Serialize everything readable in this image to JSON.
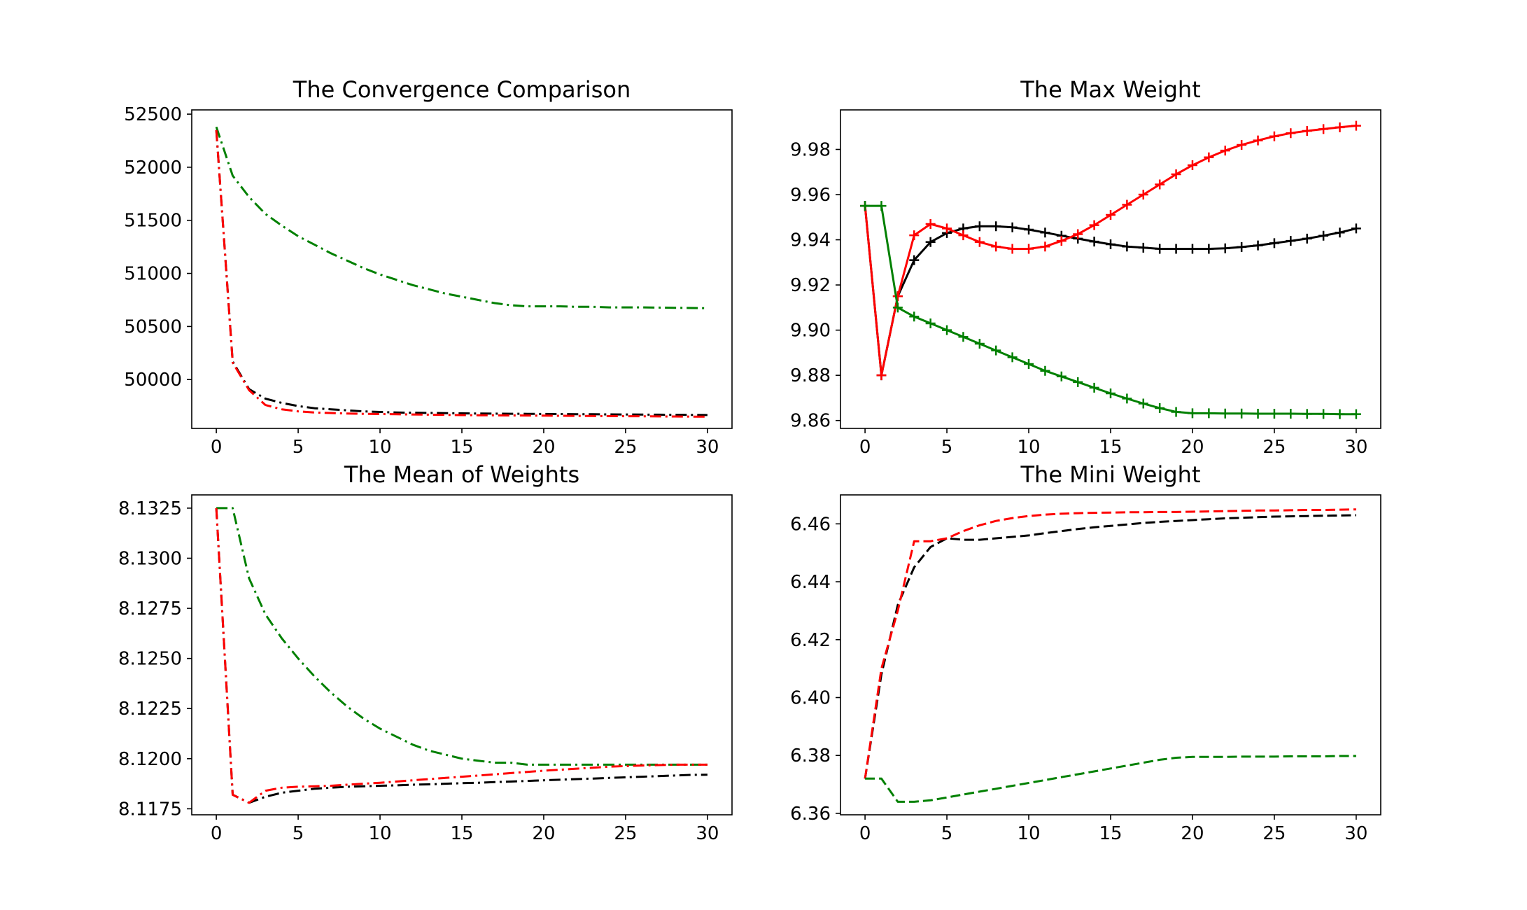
{
  "chart_data": [
    {
      "type": "line",
      "title": "The Convergence Comparison",
      "xlabel": "",
      "ylabel": "",
      "xlim": [
        -1.5,
        31.5
      ],
      "ylim": [
        49540,
        52540
      ],
      "xticks": [
        0,
        5,
        10,
        15,
        20,
        25,
        30
      ],
      "yticks": [
        50000,
        50500,
        51000,
        51500,
        52000,
        52500
      ],
      "x": [
        0,
        1,
        2,
        3,
        4,
        5,
        6,
        7,
        8,
        9,
        10,
        11,
        12,
        13,
        14,
        15,
        16,
        17,
        18,
        19,
        20,
        21,
        22,
        23,
        24,
        25,
        26,
        27,
        28,
        29,
        30
      ],
      "series": [
        {
          "color": "#008000",
          "dash": "dashdot",
          "marker": "none",
          "values": [
            52380,
            51920,
            51720,
            51560,
            51450,
            51350,
            51270,
            51190,
            51120,
            51050,
            50990,
            50940,
            50890,
            50850,
            50810,
            50780,
            50750,
            50720,
            50700,
            50690,
            50690,
            50690,
            50685,
            50685,
            50680,
            50680,
            50680,
            50678,
            50676,
            50674,
            50672
          ]
        },
        {
          "color": "#000000",
          "dash": "dashdot",
          "marker": "none",
          "values": [
            52350,
            50170,
            49910,
            49820,
            49780,
            49750,
            49730,
            49720,
            49710,
            49700,
            49695,
            49690,
            49688,
            49686,
            49684,
            49682,
            49680,
            49679,
            49678,
            49677,
            49676,
            49675,
            49674,
            49673,
            49672,
            49671,
            49670,
            49669,
            49668,
            49667,
            49666
          ]
        },
        {
          "color": "#ff0000",
          "dash": "dashdot",
          "marker": "none",
          "values": [
            52350,
            50160,
            49900,
            49760,
            49720,
            49700,
            49690,
            49685,
            49680,
            49677,
            49675,
            49673,
            49671,
            49669,
            49667,
            49665,
            49664,
            49663,
            49662,
            49661,
            49660,
            49659,
            49658,
            49657,
            49656,
            49655,
            49654,
            49653,
            49652,
            49651,
            49650
          ]
        }
      ]
    },
    {
      "type": "line",
      "title": "The Max Weight",
      "xlabel": "",
      "ylabel": "",
      "xlim": [
        -1.5,
        31.5
      ],
      "ylim": [
        9.8565,
        9.9975
      ],
      "xticks": [
        0,
        5,
        10,
        15,
        20,
        25,
        30
      ],
      "yticks": [
        9.86,
        9.88,
        9.9,
        9.92,
        9.94,
        9.96,
        9.98
      ],
      "x": [
        0,
        1,
        2,
        3,
        4,
        5,
        6,
        7,
        8,
        9,
        10,
        11,
        12,
        13,
        14,
        15,
        16,
        17,
        18,
        19,
        20,
        21,
        22,
        23,
        24,
        25,
        26,
        27,
        28,
        29,
        30
      ],
      "series": [
        {
          "color": "#000000",
          "dash": "solid",
          "marker": "plus",
          "values": [
            9.955,
            9.88,
            9.915,
            9.931,
            9.939,
            9.943,
            9.945,
            9.946,
            9.946,
            9.9455,
            9.9445,
            9.9432,
            9.9418,
            9.9405,
            9.9392,
            9.938,
            9.937,
            9.9365,
            9.936,
            9.936,
            9.936,
            9.936,
            9.9362,
            9.9368,
            9.9375,
            9.9385,
            9.9395,
            9.9405,
            9.9418,
            9.9432,
            9.945
          ]
        },
        {
          "color": "#ff0000",
          "dash": "solid",
          "marker": "plus",
          "values": [
            9.955,
            9.88,
            9.915,
            9.942,
            9.947,
            9.945,
            9.942,
            9.939,
            9.937,
            9.936,
            9.936,
            9.937,
            9.9395,
            9.9425,
            9.9465,
            9.951,
            9.9555,
            9.96,
            9.9645,
            9.969,
            9.973,
            9.9765,
            9.9795,
            9.982,
            9.984,
            9.9858,
            9.9872,
            9.9882,
            9.989,
            9.9898,
            9.9905
          ]
        },
        {
          "color": "#008000",
          "dash": "solid",
          "marker": "plus",
          "values": [
            9.955,
            9.955,
            9.91,
            9.906,
            9.903,
            9.9,
            9.897,
            9.894,
            9.891,
            9.888,
            9.885,
            9.882,
            9.8795,
            9.877,
            9.8745,
            9.872,
            9.8697,
            9.8675,
            9.8655,
            9.8638,
            9.8632,
            9.8632,
            9.8631,
            9.8631,
            9.863,
            9.863,
            9.863,
            9.8629,
            9.8629,
            9.8628,
            9.8628
          ]
        }
      ]
    },
    {
      "type": "line",
      "title": "The Mean of Weights",
      "xlabel": "",
      "ylabel": "",
      "xlim": [
        -1.5,
        31.5
      ],
      "ylim": [
        8.1172,
        8.13316
      ],
      "xticks": [
        0,
        5,
        10,
        15,
        20,
        25,
        30
      ],
      "yticks": [
        8.1175,
        8.12,
        8.1225,
        8.125,
        8.1275,
        8.13,
        8.1325
      ],
      "x": [
        0,
        1,
        2,
        3,
        4,
        5,
        6,
        7,
        8,
        9,
        10,
        11,
        12,
        13,
        14,
        15,
        16,
        17,
        18,
        19,
        20,
        21,
        22,
        23,
        24,
        25,
        26,
        27,
        28,
        29,
        30
      ],
      "series": [
        {
          "color": "#008000",
          "dash": "dashdot",
          "marker": "none",
          "values": [
            8.1325,
            8.1325,
            8.129,
            8.1272,
            8.126,
            8.125,
            8.1241,
            8.1233,
            8.1226,
            8.122,
            8.1215,
            8.1211,
            8.1207,
            8.1204,
            8.1202,
            8.12,
            8.1199,
            8.1198,
            8.1198,
            8.1197,
            8.1197,
            8.1197,
            8.1197,
            8.1197,
            8.1197,
            8.1197,
            8.1197,
            8.1197,
            8.1197,
            8.1197,
            8.1197
          ]
        },
        {
          "color": "#000000",
          "dash": "dashdot",
          "marker": "none",
          "values": [
            8.1325,
            8.1182,
            8.1178,
            8.1181,
            8.1183,
            8.1184,
            8.1185,
            8.11855,
            8.1186,
            8.11862,
            8.11865,
            8.11867,
            8.1187,
            8.11872,
            8.11875,
            8.11878,
            8.1188,
            8.11883,
            8.11886,
            8.11889,
            8.11892,
            8.11895,
            8.11898,
            8.11901,
            8.11904,
            8.11907,
            8.1191,
            8.11913,
            8.11916,
            8.11919,
            8.1192
          ]
        },
        {
          "color": "#ff0000",
          "dash": "dashdot",
          "marker": "none",
          "values": [
            8.1325,
            8.1182,
            8.1178,
            8.1184,
            8.11855,
            8.1186,
            8.11862,
            8.11865,
            8.1187,
            8.11875,
            8.1188,
            8.11886,
            8.11892,
            8.11898,
            8.11904,
            8.1191,
            8.11916,
            8.11922,
            8.11928,
            8.11934,
            8.1194,
            8.11945,
            8.1195,
            8.11955,
            8.1196,
            8.11963,
            8.11966,
            8.11968,
            8.1197,
            8.1197,
            8.1197
          ]
        }
      ]
    },
    {
      "type": "line",
      "title": "The Mini Weight",
      "xlabel": "",
      "ylabel": "",
      "xlim": [
        -1.5,
        31.5
      ],
      "ylim": [
        6.3595,
        6.47
      ],
      "xticks": [
        0,
        5,
        10,
        15,
        20,
        25,
        30
      ],
      "yticks": [
        6.36,
        6.38,
        6.4,
        6.42,
        6.44,
        6.46
      ],
      "x": [
        0,
        1,
        2,
        3,
        4,
        5,
        6,
        7,
        8,
        9,
        10,
        11,
        12,
        13,
        14,
        15,
        16,
        17,
        18,
        19,
        20,
        21,
        22,
        23,
        24,
        25,
        26,
        27,
        28,
        29,
        30
      ],
      "series": [
        {
          "color": "#000000",
          "dash": "dashed",
          "marker": "none",
          "values": [
            6.372,
            6.408,
            6.432,
            6.445,
            6.452,
            6.455,
            6.4545,
            6.4545,
            6.455,
            6.4555,
            6.456,
            6.4568,
            6.4575,
            6.4582,
            6.4588,
            6.4593,
            6.4598,
            6.4603,
            6.4607,
            6.461,
            6.4613,
            6.4616,
            6.4619,
            6.4621,
            6.4623,
            6.4625,
            6.4626,
            6.4627,
            6.4628,
            6.4629,
            6.463
          ]
        },
        {
          "color": "#ff0000",
          "dash": "dashed",
          "marker": "none",
          "values": [
            6.372,
            6.41,
            6.43,
            6.454,
            6.454,
            6.455,
            6.4575,
            6.4595,
            6.461,
            6.462,
            6.4627,
            6.4632,
            6.4635,
            6.4637,
            6.4638,
            6.4639,
            6.464,
            6.464,
            6.4641,
            6.4641,
            6.4642,
            6.4643,
            6.4644,
            6.4645,
            6.4646,
            6.4646,
            6.4647,
            6.4648,
            6.4648,
            6.4649,
            6.465
          ]
        },
        {
          "color": "#008000",
          "dash": "dashed",
          "marker": "none",
          "values": [
            6.372,
            6.372,
            6.364,
            6.364,
            6.3645,
            6.3655,
            6.3665,
            6.3675,
            6.3685,
            6.3695,
            6.3705,
            6.3715,
            6.3725,
            6.3735,
            6.3745,
            6.3755,
            6.3765,
            6.3775,
            6.3785,
            6.3792,
            6.3795,
            6.3795,
            6.3795,
            6.3796,
            6.3796,
            6.3796,
            6.3797,
            6.3797,
            6.3797,
            6.3798,
            6.3798
          ]
        }
      ]
    }
  ]
}
